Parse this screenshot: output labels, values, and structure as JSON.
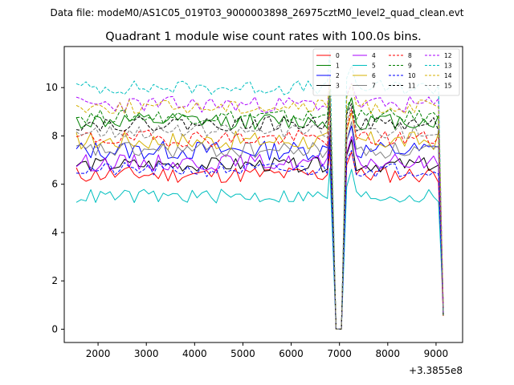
{
  "suptitle": "Data file: modeM0/AS1C05_019T03_9000003898_26975cztM0_level2_quad_clean.evt",
  "chart_data": {
    "type": "line",
    "title": "Quadrant 1 module wise count rates with 100.0s bins.",
    "xlabel": "",
    "ylabel": "",
    "x_offset_label": "+3.3855e8",
    "xlim": [
      1300,
      9550
    ],
    "ylim": [
      -0.55,
      11.7
    ],
    "xticks": [
      2000,
      3000,
      4000,
      5000,
      6000,
      7000,
      8000,
      9000
    ],
    "yticks": [
      0,
      2,
      4,
      6,
      8,
      10
    ],
    "x_start": 1550,
    "x_step": 100,
    "drop_x": [
      6810,
      6930,
      7040,
      7150,
      7250
    ],
    "dip_x": [
      9150
    ],
    "legend": {
      "position": "top-right",
      "ncol": 4
    },
    "series": [
      {
        "name": "0",
        "color": "#ff0000",
        "dash": "solid",
        "base": 6.4,
        "amp": 0.35,
        "seed": 11,
        "trend": 0.0
      },
      {
        "name": "1",
        "color": "#008000",
        "dash": "solid",
        "base": 8.6,
        "amp": 0.35,
        "seed": 12,
        "trend": 0.0
      },
      {
        "name": "2",
        "color": "#0000ff",
        "dash": "solid",
        "base": 7.4,
        "amp": 0.4,
        "seed": 13,
        "trend": 0.0
      },
      {
        "name": "3",
        "color": "#000000",
        "dash": "solid",
        "base": 6.8,
        "amp": 0.3,
        "seed": 14,
        "trend": 0.0
      },
      {
        "name": "4",
        "color": "#aa00ff",
        "dash": "solid",
        "base": 6.9,
        "amp": 0.35,
        "seed": 15,
        "trend": 0.0
      },
      {
        "name": "5",
        "color": "#00bfbf",
        "dash": "solid",
        "base": 5.5,
        "amp": 0.3,
        "seed": 16,
        "trend": 0.0
      },
      {
        "name": "6",
        "color": "#d4b000",
        "dash": "solid",
        "base": 7.8,
        "amp": 0.4,
        "seed": 17,
        "trend": 0.0
      },
      {
        "name": "7",
        "color": "#808080",
        "dash": "solid",
        "base": 7.4,
        "amp": 0.35,
        "seed": 18,
        "trend": 0.0
      },
      {
        "name": "8",
        "color": "#ff0000",
        "dash": "dashed",
        "base": 7.9,
        "amp": 0.35,
        "seed": 19,
        "trend": 0.0
      },
      {
        "name": "9",
        "color": "#008000",
        "dash": "dashed",
        "base": 8.8,
        "amp": 0.3,
        "seed": 20,
        "trend": 0.0
      },
      {
        "name": "10",
        "color": "#0000ff",
        "dash": "dashed",
        "base": 6.6,
        "amp": 0.3,
        "seed": 21,
        "trend": 0.0
      },
      {
        "name": "11",
        "color": "#000000",
        "dash": "dashed",
        "base": 8.5,
        "amp": 0.3,
        "seed": 22,
        "trend": 0.0
      },
      {
        "name": "12",
        "color": "#aa00ff",
        "dash": "dashed",
        "base": 9.3,
        "amp": 0.35,
        "seed": 23,
        "trend": 0.0
      },
      {
        "name": "13",
        "color": "#00bfbf",
        "dash": "dashed",
        "base": 10.0,
        "amp": 0.3,
        "seed": 24,
        "trend": 0.0
      },
      {
        "name": "14",
        "color": "#d4b000",
        "dash": "dashed",
        "base": 9.2,
        "amp": 0.3,
        "seed": 25,
        "trend": 0.0
      },
      {
        "name": "15",
        "color": "#808080",
        "dash": "dashed",
        "base": 8.2,
        "amp": 0.3,
        "seed": 26,
        "trend": 0.0
      }
    ]
  }
}
